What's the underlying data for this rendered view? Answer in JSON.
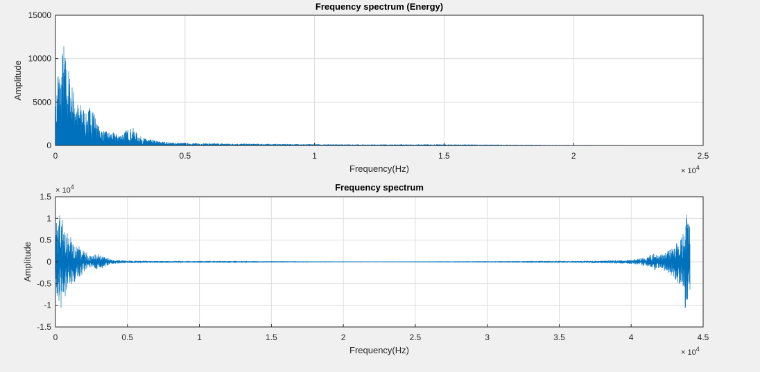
{
  "chart_data": [
    {
      "type": "line",
      "title": "Frequency spectrum (Energy)",
      "xlabel": "Frequency(Hz)",
      "ylabel": "Amplitude",
      "x_exponent": "× 10",
      "x_exponent_power": "4",
      "xlim": [
        0,
        25000
      ],
      "ylim": [
        0,
        15000
      ],
      "xticks": [
        0,
        5000,
        10000,
        15000,
        20000,
        25000
      ],
      "xtick_labels": [
        "0",
        "0.5",
        "1",
        "1.5",
        "2",
        "2.5"
      ],
      "yticks": [
        0,
        5000,
        10000,
        15000
      ],
      "ytick_labels": [
        "0",
        "5000",
        "10000",
        "15000"
      ],
      "grid": true,
      "color": "#0072bd",
      "series": [
        {
          "x": [
            0,
            100,
            200,
            300,
            400,
            500,
            600,
            700,
            800,
            900,
            1000,
            1200,
            1400,
            1600,
            1800,
            2000,
            2200,
            2500,
            2800,
            3000,
            3200,
            3500,
            4000,
            4500,
            5000,
            6000,
            7000,
            8000,
            9000,
            10000,
            11000,
            12000,
            13000,
            14000,
            15000,
            16000,
            17000,
            18000,
            19000,
            20000,
            21000,
            22000
          ],
          "y": [
            4000,
            9500,
            8000,
            12500,
            10000,
            9000,
            7500,
            6500,
            5500,
            4500,
            5000,
            3500,
            5200,
            2500,
            1800,
            1600,
            1500,
            1300,
            1900,
            2000,
            1200,
            800,
            500,
            350,
            300,
            250,
            220,
            200,
            170,
            150,
            130,
            110,
            90,
            80,
            70,
            60,
            50,
            40,
            30,
            20,
            15,
            10
          ]
        }
      ]
    },
    {
      "type": "line",
      "title": "Frequency spectrum",
      "xlabel": "Frequency(Hz)",
      "ylabel": "Amplitude",
      "y_exponent": "× 10",
      "y_exponent_power": "4",
      "x_exponent": "× 10",
      "x_exponent_power": "4",
      "xlim": [
        0,
        45000
      ],
      "ylim": [
        -1.5,
        1.5
      ],
      "xticks": [
        0,
        5000,
        10000,
        15000,
        20000,
        25000,
        30000,
        35000,
        40000,
        45000
      ],
      "xtick_labels": [
        "0",
        "0.5",
        "1",
        "1.5",
        "2",
        "2.5",
        "3",
        "3.5",
        "4",
        "4.5"
      ],
      "yticks": [
        -1.5,
        -1,
        -0.5,
        0,
        0.5,
        1,
        1.5
      ],
      "ytick_labels": [
        "-1.5",
        "-1",
        "-0.5",
        "0",
        "0.5",
        "1",
        "1.5"
      ],
      "grid": true,
      "color": "#0072bd",
      "series": [
        {
          "x": [
            0,
            200,
            400,
            600,
            800,
            1000,
            1500,
            2000,
            2500,
            3000,
            3500,
            4000,
            5000,
            7000,
            10000,
            15000,
            20000,
            22050,
            24000,
            30000,
            35000,
            38000,
            40000,
            41000,
            41500,
            42000,
            42500,
            43000,
            43500,
            43800,
            44100
          ],
          "y": [
            0.8,
            1.2,
            1.1,
            0.9,
            0.7,
            0.6,
            0.4,
            0.25,
            0.15,
            0.2,
            0.1,
            0.05,
            0.03,
            0.02,
            0.01,
            0.005,
            0.002,
            0.001,
            0.002,
            0.005,
            0.01,
            0.03,
            0.05,
            0.1,
            0.2,
            0.15,
            0.25,
            0.4,
            0.6,
            1.2,
            0.8
          ]
        }
      ]
    }
  ]
}
